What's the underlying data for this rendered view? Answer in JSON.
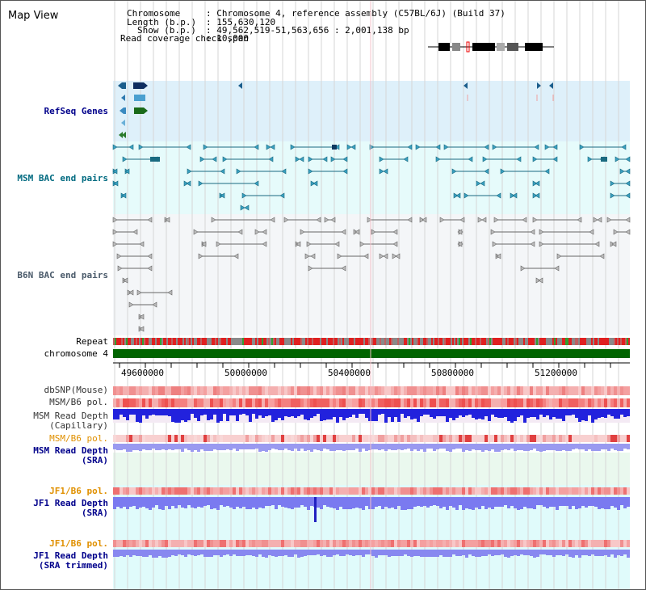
{
  "title": "Map View",
  "info": {
    "chromosome_key": "Chromosome",
    "chromosome_val": ": Chromosome 4, reference assembly (C57BL/6J) (Build 37)",
    "length_key": "Length (b.p.)",
    "length_val": ": 155,630,120",
    "show_key": "Show (b.p.)",
    "show_val": ": 49,562,519-51,563,656 : 2,001,138 bp",
    "coverage_key": "Read coverage check span",
    "coverage_val": ": 10,000"
  },
  "tracks": {
    "refseq": "RefSeq Genes",
    "msm_bac": "MSM BAC end pairs",
    "b6n_bac": "B6N BAC end pairs",
    "repeat": "Repeat",
    "chromosome": "chromosome 4",
    "dbsnp": "dbSNP(Mouse)",
    "msm_pol": "MSM/B6 pol.",
    "msm_depth_cap_1": "MSM Read Depth",
    "msm_depth_cap_2": "(Capillary)",
    "msm_pol2": "MSM/B6 pol.",
    "msm_depth_sra_1": "MSM Read Depth",
    "msm_depth_sra_2": "(SRA)",
    "jf1_pol": "JF1/B6 pol.",
    "jf1_depth_sra_1": "JF1 Read Depth",
    "jf1_depth_sra_2": "(SRA)",
    "jf1_pol2": "JF1/B6 pol.",
    "jf1_depth_trim_1": "JF1 Read Depth",
    "jf1_depth_trim_2": "(SRA trimmed)"
  },
  "axis": {
    "ticks": [
      "49600000",
      "50000000",
      "50400000",
      "50800000",
      "51200000"
    ]
  },
  "colors": {
    "label_blue": "#00008b",
    "label_teal": "#006a80",
    "label_gray": "#4a5a6a",
    "label_orange": "#e09000",
    "refseq_bg": "#def0fa",
    "msm_bg": "#e6fbfb",
    "b6n_bg": "#f4f6f8",
    "chromosome_green": "#006400",
    "depth_blue": "#2020e0",
    "depth_light": "#8080f0",
    "sra_bg": "#eaf8ee",
    "jf1_bg": "#e0fbfb"
  },
  "icons": [
    "chromosome-ideogram-icon",
    "gene-arrow-icon",
    "bac-pair-icon"
  ]
}
